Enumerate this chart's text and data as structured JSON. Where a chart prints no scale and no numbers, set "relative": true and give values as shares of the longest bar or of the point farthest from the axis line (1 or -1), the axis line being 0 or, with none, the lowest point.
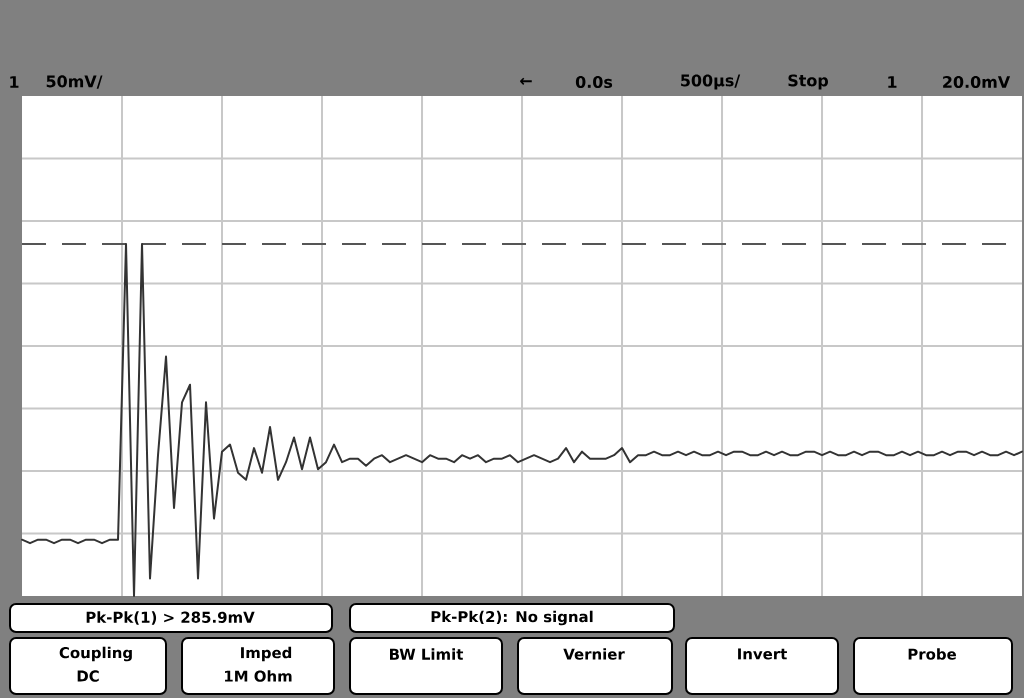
{
  "chart_data": {
    "type": "line",
    "relative": true,
    "grid": true,
    "marker": "none",
    "line_style": "solid",
    "categories": [
      null,
      null,
      null,
      null,
      null,
      null,
      null,
      null,
      null,
      null,
      null,
      null,
      null,
      null,
      null,
      null,
      null,
      null,
      null,
      null,
      null,
      null,
      null,
      null,
      null,
      null,
      null,
      null,
      null,
      null,
      null,
      null,
      null,
      null,
      null,
      null,
      null,
      null,
      null,
      null,
      null,
      null,
      null,
      null,
      null,
      null,
      null,
      null,
      null,
      null,
      null,
      null,
      null,
      null,
      null,
      null,
      null,
      null,
      null,
      null,
      null,
      null,
      null,
      null,
      null,
      null,
      null,
      null,
      null,
      null,
      null,
      null,
      null,
      null,
      null,
      null,
      null,
      null,
      null,
      null,
      null,
      null,
      null,
      null,
      null,
      null,
      null,
      null,
      null,
      null,
      null,
      null,
      null,
      null,
      null,
      null,
      null,
      null,
      null,
      null,
      null,
      null,
      null,
      null,
      null,
      null,
      null,
      null,
      null,
      null,
      null,
      null,
      null,
      null,
      null,
      null,
      null,
      null,
      null,
      null,
      null,
      null,
      null,
      null,
      null,
      null
    ],
    "series": [
      {
        "color": "#333333",
        "values": [
          0.16,
          0.15,
          0.16,
          0.16,
          0.15,
          0.16,
          0.16,
          0.15,
          0.16,
          0.16,
          0.15,
          0.16,
          0.16,
          1,
          0,
          1,
          0.05,
          0.4,
          0.68,
          0.25,
          0.55,
          0.6,
          0.05,
          0.55,
          0.22,
          0.41,
          0.43,
          0.35,
          0.33,
          0.42,
          0.35,
          0.48,
          0.33,
          0.38,
          0.45,
          0.36,
          0.45,
          0.36,
          0.38,
          0.43,
          0.38,
          0.39,
          0.39,
          0.37,
          0.39,
          0.4,
          0.38,
          0.39,
          0.4,
          0.39,
          0.38,
          0.4,
          0.39,
          0.39,
          0.38,
          0.4,
          0.39,
          0.4,
          0.38,
          0.39,
          0.39,
          0.4,
          0.38,
          0.39,
          0.4,
          0.39,
          0.38,
          0.39,
          0.42,
          0.38,
          0.41,
          0.39,
          0.39,
          0.39,
          0.4,
          0.42,
          0.38,
          0.4,
          0.4,
          0.41,
          0.4,
          0.4,
          0.41,
          0.4,
          0.41,
          0.4,
          0.4,
          0.41,
          0.4,
          0.41,
          0.41,
          0.4,
          0.4,
          0.41,
          0.4,
          0.41,
          0.4,
          0.4,
          0.41,
          0.41,
          0.4,
          0.41,
          0.4,
          0.4,
          0.41,
          0.4,
          0.41,
          0.41,
          0.4,
          0.4,
          0.41,
          0.4,
          0.41,
          0.4,
          0.4,
          0.41,
          0.4,
          0.41,
          0.41,
          0.4,
          0.41,
          0.4,
          0.4,
          0.41,
          0.4,
          0.41
        ]
      }
    ],
    "ref_lines": [
      {
        "axis": "y",
        "value": 1.0,
        "color": "#555555",
        "line_style": "dashed"
      }
    ],
    "annotations": [
      "1",
      "50mV/",
      "←",
      "0.0s",
      "500µs/",
      "Stop",
      "1",
      "20.0mV",
      "Pk-Pk(1) > 285.9mV",
      "Pk-Pk(2): No signal",
      "Coupling",
      "DC",
      "Imped",
      "1M Ohm",
      "BW Limit",
      "Vernier",
      "Invert",
      "Probe"
    ]
  }
}
